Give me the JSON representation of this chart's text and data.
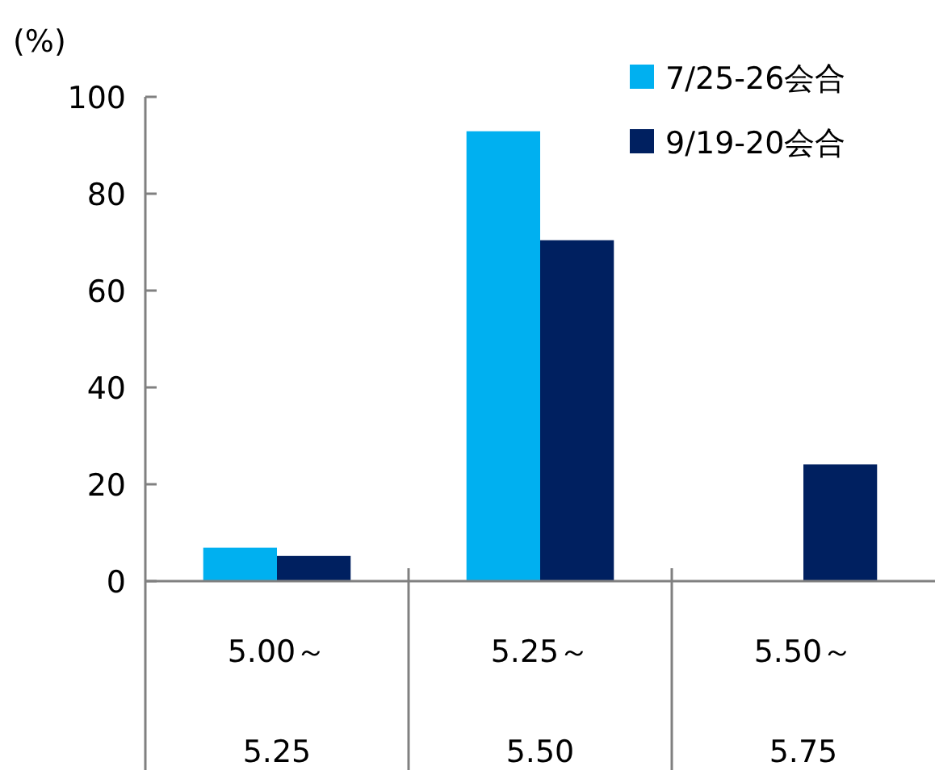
{
  "chart_data": {
    "type": "bar",
    "ylabel": "(%)",
    "categories": [
      "5.00～\n5.25",
      "5.25～\n5.50",
      "5.50～\n5.75"
    ],
    "series": [
      {
        "name": "7/25-26会合",
        "color": "#00b0f0",
        "values": [
          6.9,
          92.9,
          0
        ]
      },
      {
        "name": "9/19-20会合",
        "color": "#002060",
        "values": [
          5.2,
          70.4,
          24.1
        ]
      }
    ],
    "ylim": [
      0,
      100
    ],
    "yticks": [
      0,
      20,
      40,
      60,
      80,
      100
    ],
    "grid": false,
    "legend": "top right"
  }
}
